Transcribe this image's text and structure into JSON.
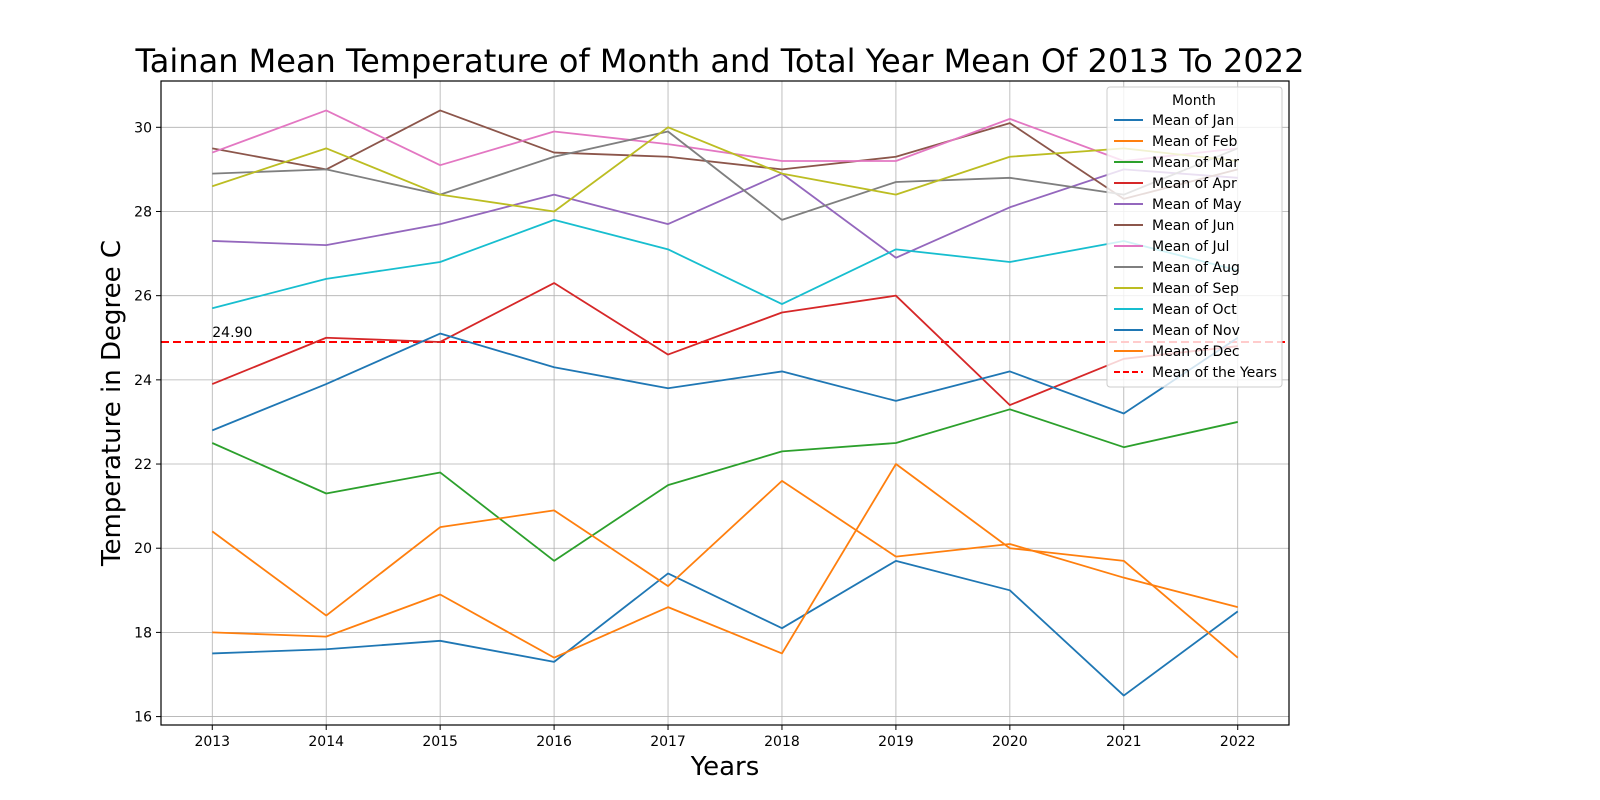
{
  "chart_data": {
    "type": "line",
    "title": "Tainan Mean Temperature of Month and Total Year Mean Of 2013 To 2022",
    "xlabel": "Years",
    "ylabel": "Temperature in Degree C",
    "x": [
      2013,
      2014,
      2015,
      2016,
      2017,
      2018,
      2019,
      2020,
      2021,
      2022
    ],
    "x_tick_labels": [
      "2013",
      "2014",
      "2015",
      "2016",
      "2017",
      "2018",
      "2019",
      "2020",
      "2021",
      "2022"
    ],
    "xlim": [
      2012.55,
      2022.45
    ],
    "ylim": [
      15.8,
      31.1
    ],
    "y_ticks": [
      16,
      18,
      20,
      22,
      24,
      26,
      28,
      30
    ],
    "y_tick_labels": [
      "16",
      "18",
      "20",
      "22",
      "24",
      "26",
      "28",
      "30"
    ],
    "grid": true,
    "legend": {
      "title": "Month",
      "placement": "top-right"
    },
    "series": [
      {
        "name": "Mean of Jan",
        "color": "#1f77b4",
        "values": [
          17.5,
          17.6,
          17.8,
          17.3,
          19.4,
          18.1,
          19.7,
          19.0,
          16.5,
          18.5
        ]
      },
      {
        "name": "Mean of Feb",
        "color": "#ff7f0e",
        "values": [
          18.0,
          17.9,
          18.9,
          17.4,
          18.6,
          17.5,
          22.0,
          20.0,
          19.7,
          17.4
        ]
      },
      {
        "name": "Mean of Mar",
        "color": "#2ca02c",
        "values": [
          22.5,
          21.3,
          21.8,
          19.7,
          21.5,
          22.3,
          22.5,
          23.3,
          22.4,
          23.0
        ]
      },
      {
        "name": "Mean of Apr",
        "color": "#d62728",
        "values": [
          23.9,
          25.0,
          24.9,
          26.3,
          24.6,
          25.6,
          26.0,
          23.4,
          24.5,
          24.8
        ]
      },
      {
        "name": "Mean of May",
        "color": "#9467bd",
        "values": [
          27.3,
          27.2,
          27.7,
          28.4,
          27.7,
          28.9,
          26.9,
          28.1,
          29.0,
          28.8
        ]
      },
      {
        "name": "Mean of Jun",
        "color": "#8c564b",
        "values": [
          29.5,
          29.0,
          30.4,
          29.4,
          29.3,
          29.0,
          29.3,
          30.1,
          28.3,
          29.0
        ]
      },
      {
        "name": "Mean of Jul",
        "color": "#e377c2",
        "values": [
          29.4,
          30.4,
          29.1,
          29.9,
          29.6,
          29.2,
          29.2,
          30.2,
          29.2,
          29.5
        ]
      },
      {
        "name": "Mean of Aug",
        "color": "#7f7f7f",
        "values": [
          28.9,
          29.0,
          28.4,
          29.3,
          29.9,
          27.8,
          28.7,
          28.8,
          28.4,
          29.5
        ]
      },
      {
        "name": "Mean of Sep",
        "color": "#bcbd22",
        "values": [
          28.6,
          29.5,
          28.4,
          28.0,
          30.0,
          28.9,
          28.4,
          29.3,
          29.5,
          29.2
        ]
      },
      {
        "name": "Mean of Oct",
        "color": "#17becf",
        "values": [
          25.7,
          26.4,
          26.8,
          27.8,
          27.1,
          25.8,
          27.1,
          26.8,
          27.3,
          26.6
        ]
      },
      {
        "name": "Mean of Nov",
        "color": "#1f77b4",
        "values": [
          22.8,
          23.9,
          25.1,
          24.3,
          23.8,
          24.2,
          23.5,
          24.2,
          23.2,
          25.0
        ]
      },
      {
        "name": "Mean of Dec",
        "color": "#ff7f0e",
        "values": [
          20.4,
          18.4,
          20.5,
          20.9,
          19.1,
          21.6,
          19.8,
          20.1,
          19.3,
          18.6
        ]
      }
    ],
    "mean_line": {
      "name": "Mean of the Years",
      "value": 24.9,
      "label": "24.90",
      "color": "#ff0000",
      "style": "dashed"
    }
  }
}
